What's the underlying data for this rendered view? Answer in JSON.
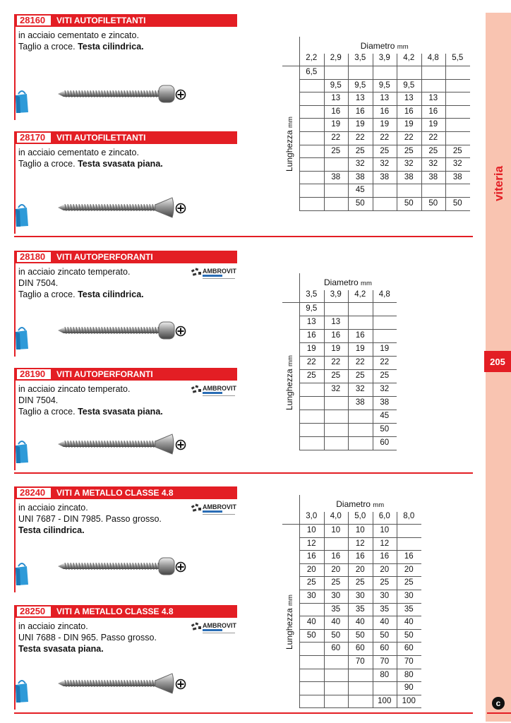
{
  "side": {
    "label": "viteria",
    "page": "205",
    "logo": "c"
  },
  "colors": {
    "accent": "#e31e24",
    "strip": "#f9c4b1"
  },
  "products": [
    {
      "code": "28160",
      "title": "VITI AUTOFILETTANTI",
      "line1": "in acciaio cementato e zincato.",
      "line2": "Taglio a croce. ",
      "bold": "Testa cilindrica.",
      "head": "pan",
      "logo": false
    },
    {
      "code": "28170",
      "title": "VITI AUTOFILETTANTI",
      "line1": "in acciaio cementato e zincato.",
      "line2": "Taglio a croce. ",
      "bold": "Testa svasata piana.",
      "head": "flat",
      "logo": false
    },
    {
      "code": "28180",
      "title": "VITI AUTOPERFORANTI",
      "line1": "in acciaio zincato temperato.",
      "line1b": "DIN 7504.",
      "line2": "Taglio a croce. ",
      "bold": "Testa cilindrica.",
      "head": "pan",
      "logo": true
    },
    {
      "code": "28190",
      "title": "VITI AUTOPERFORANTI",
      "line1": "in acciaio zincato temperato.",
      "line1b": "DIN 7504.",
      "line2": "Taglio a croce. ",
      "bold": "Testa svasata piana.",
      "head": "flat",
      "logo": true
    },
    {
      "code": "28240",
      "title": "VITI A METALLO CLASSE 4.8",
      "line1": "in acciaio zincato.",
      "line1b": "UNI 7687 - DIN 7985. Passo grosso.",
      "line2": "",
      "bold": "Testa cilindrica.",
      "head": "pan",
      "logo": true
    },
    {
      "code": "28250",
      "title": "VITI A METALLO CLASSE 4.8",
      "line1": "in acciaio zincato.",
      "line1b": "UNI 7688 - DIN 965. Passo grosso.",
      "line2": "",
      "bold": "Testa svasata piana.",
      "head": "flat",
      "logo": true
    }
  ],
  "logo_text": "AMBROVIT",
  "tables": [
    {
      "diam_label": "Diametro",
      "row_label": "Lunghezza",
      "unit": "mm",
      "cols": [
        "2,2",
        "2,9",
        "3,5",
        "3,9",
        "4,2",
        "4,8",
        "5,5"
      ],
      "rows": [
        [
          "6,5",
          "",
          "",
          "",
          "",
          "",
          ""
        ],
        [
          "",
          "9,5",
          "9,5",
          "9,5",
          "9,5",
          "",
          ""
        ],
        [
          "",
          "13",
          "13",
          "13",
          "13",
          "13",
          ""
        ],
        [
          "",
          "16",
          "16",
          "16",
          "16",
          "16",
          ""
        ],
        [
          "",
          "19",
          "19",
          "19",
          "19",
          "19",
          ""
        ],
        [
          "",
          "22",
          "22",
          "22",
          "22",
          "22",
          ""
        ],
        [
          "",
          "25",
          "25",
          "25",
          "25",
          "25",
          "25"
        ],
        [
          "",
          "",
          "32",
          "32",
          "32",
          "32",
          "32"
        ],
        [
          "",
          "38",
          "38",
          "38",
          "38",
          "38",
          "38"
        ],
        [
          "",
          "",
          "45",
          "",
          "",
          "",
          ""
        ],
        [
          "",
          "",
          "50",
          "",
          "50",
          "50",
          "50"
        ]
      ]
    },
    {
      "diam_label": "Diametro",
      "row_label": "Lunghezza",
      "unit": "mm",
      "cols": [
        "3,5",
        "3,9",
        "4,2",
        "4,8"
      ],
      "rows": [
        [
          "9,5",
          "",
          "",
          ""
        ],
        [
          "13",
          "13",
          "",
          ""
        ],
        [
          "16",
          "16",
          "16",
          ""
        ],
        [
          "19",
          "19",
          "19",
          "19"
        ],
        [
          "22",
          "22",
          "22",
          "22"
        ],
        [
          "25",
          "25",
          "25",
          "25"
        ],
        [
          "",
          "32",
          "32",
          "32"
        ],
        [
          "",
          "",
          "38",
          "38"
        ],
        [
          "",
          "",
          "",
          "45"
        ],
        [
          "",
          "",
          "",
          "50"
        ],
        [
          "",
          "",
          "",
          "60"
        ]
      ]
    },
    {
      "diam_label": "Diametro",
      "row_label": "Lunghezza",
      "unit": "mm",
      "cols": [
        "3,0",
        "4,0",
        "5,0",
        "6,0",
        "8,0"
      ],
      "rows": [
        [
          "10",
          "10",
          "10",
          "10",
          ""
        ],
        [
          "12",
          "",
          "12",
          "12",
          ""
        ],
        [
          "16",
          "16",
          "16",
          "16",
          "16"
        ],
        [
          "20",
          "20",
          "20",
          "20",
          "20"
        ],
        [
          "25",
          "25",
          "25",
          "25",
          "25"
        ],
        [
          "30",
          "30",
          "30",
          "30",
          "30"
        ],
        [
          "",
          "35",
          "35",
          "35",
          "35"
        ],
        [
          "40",
          "40",
          "40",
          "40",
          "40"
        ],
        [
          "50",
          "50",
          "50",
          "50",
          "50"
        ],
        [
          "",
          "60",
          "60",
          "60",
          "60"
        ],
        [
          "",
          "",
          "70",
          "70",
          "70"
        ],
        [
          "",
          "",
          "",
          "80",
          "80"
        ],
        [
          "",
          "",
          "",
          "",
          "90"
        ],
        [
          "",
          "",
          "",
          "100",
          "100"
        ]
      ]
    }
  ]
}
